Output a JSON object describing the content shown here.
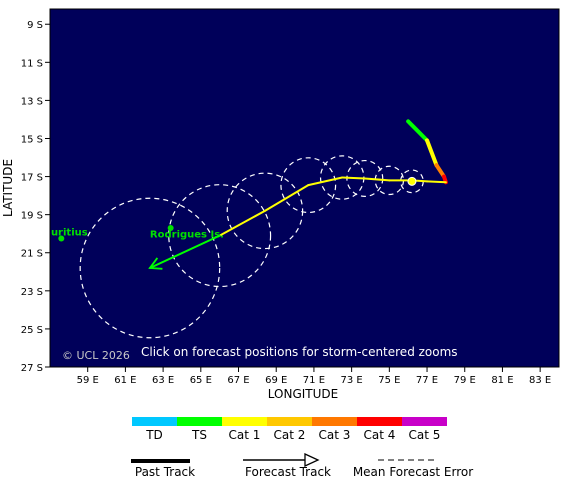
{
  "map": {
    "lon_min": 57,
    "lon_max": 84,
    "lat_top": -8.2,
    "lat_bottom": -27,
    "ocean_color": "#00005a",
    "axis_x_label": "LONGITUDE",
    "axis_y_label": "LATITUDE",
    "lat_ticks": [
      {
        "lat": -9,
        "label": "9 S"
      },
      {
        "lat": -11,
        "label": "11 S"
      },
      {
        "lat": -13,
        "label": "13 S"
      },
      {
        "lat": -15,
        "label": "15 S"
      },
      {
        "lat": -17,
        "label": "17 S"
      },
      {
        "lat": -19,
        "label": "19 S"
      },
      {
        "lat": -21,
        "label": "21 S"
      },
      {
        "lat": -23,
        "label": "23 S"
      },
      {
        "lat": -25,
        "label": "25 S"
      },
      {
        "lat": -27,
        "label": "27 S"
      }
    ],
    "lon_ticks": [
      {
        "lon": 59,
        "label": "59 E"
      },
      {
        "lon": 61,
        "label": "61 E"
      },
      {
        "lon": 63,
        "label": "63 E"
      },
      {
        "lon": 65,
        "label": "65 E"
      },
      {
        "lon": 67,
        "label": "67 E"
      },
      {
        "lon": 69,
        "label": "69 E"
      },
      {
        "lon": 71,
        "label": "71 E"
      },
      {
        "lon": 73,
        "label": "73 E"
      },
      {
        "lon": 75,
        "label": "75 E"
      },
      {
        "lon": 77,
        "label": "77 E"
      },
      {
        "lon": 79,
        "label": "79 E"
      },
      {
        "lon": 81,
        "label": "81 E"
      },
      {
        "lon": 83,
        "label": "83 E"
      }
    ],
    "copyright": "© UCL 2026",
    "instruction": "Click on forecast positions for storm-centered zooms",
    "places": [
      {
        "name": "Mauritius",
        "label": "uritius",
        "lon": 57.6,
        "lat": -20.25,
        "text_lon": 57.05,
        "text_lat": -20.1,
        "text_color": "#00e000"
      },
      {
        "name": "Rodrigues Is",
        "label": "Rodrigues Is.",
        "lon": 63.4,
        "lat": -19.7,
        "text_lon": 62.3,
        "text_lat": -20.2,
        "text_color": "#00e000"
      }
    ]
  },
  "storm": {
    "past_track": [
      {
        "lon": 76.0,
        "lat": -14.1,
        "color": "#00ff00"
      },
      {
        "lon": 77.0,
        "lat": -15.1,
        "color": "#00ff00"
      },
      {
        "lon": 77.5,
        "lat": -16.4,
        "color": "#ffff00"
      },
      {
        "lon": 77.9,
        "lat": -17.0,
        "color": "#ff8000"
      },
      {
        "lon": 78.0,
        "lat": -17.3,
        "color": "#ff0000"
      }
    ],
    "current_position": {
      "lon": 76.2,
      "lat": -17.25
    },
    "forecast_track": [
      {
        "lon": 78.0,
        "lat": -17.3,
        "color": "#ffff00"
      },
      {
        "lon": 77.0,
        "lat": -17.25,
        "color": "#ffff00"
      },
      {
        "lon": 76.2,
        "lat": -17.2,
        "color": "#ffff00"
      },
      {
        "lon": 75.0,
        "lat": -17.2,
        "color": "#ffff00"
      },
      {
        "lon": 73.7,
        "lat": -17.1,
        "color": "#ffff00"
      },
      {
        "lon": 72.5,
        "lat": -17.05,
        "color": "#ffff00"
      },
      {
        "lon": 70.7,
        "lat": -17.45,
        "color": "#ffff00"
      },
      {
        "lon": 68.4,
        "lat": -18.8,
        "color": "#ffff00"
      },
      {
        "lon": 66.0,
        "lat": -20.1,
        "color": "#ffff00"
      },
      {
        "lon": 62.3,
        "lat": -21.8,
        "color": "#00ff00"
      }
    ],
    "error_cone": [
      {
        "lon": 76.2,
        "lat": -17.25,
        "radius_deg": 0.6
      },
      {
        "lon": 75.0,
        "lat": -17.2,
        "radius_deg": 0.75
      },
      {
        "lon": 73.7,
        "lat": -17.1,
        "radius_deg": 0.95
      },
      {
        "lon": 72.5,
        "lat": -17.05,
        "radius_deg": 1.15
      },
      {
        "lon": 70.7,
        "lat": -17.45,
        "radius_deg": 1.45
      },
      {
        "lon": 68.4,
        "lat": -18.8,
        "radius_deg": 2.0
      },
      {
        "lon": 66.0,
        "lat": -20.1,
        "radius_deg": 2.7
      },
      {
        "lon": 62.3,
        "lat": -21.8,
        "radius_deg": 3.7
      }
    ]
  },
  "legend": {
    "categories": [
      {
        "label": "TD",
        "color": "#00c8ff"
      },
      {
        "label": "TS",
        "color": "#00ff00"
      },
      {
        "label": "Cat 1",
        "color": "#ffff00"
      },
      {
        "label": "Cat 2",
        "color": "#ffc800"
      },
      {
        "label": "Cat 3",
        "color": "#ff7800"
      },
      {
        "label": "Cat 4",
        "color": "#ff0000"
      },
      {
        "label": "Cat 5",
        "color": "#c800c8"
      }
    ],
    "past_track_label": "Past Track",
    "forecast_track_label": "Forecast Track",
    "mean_error_label": "Mean Forecast Error"
  }
}
